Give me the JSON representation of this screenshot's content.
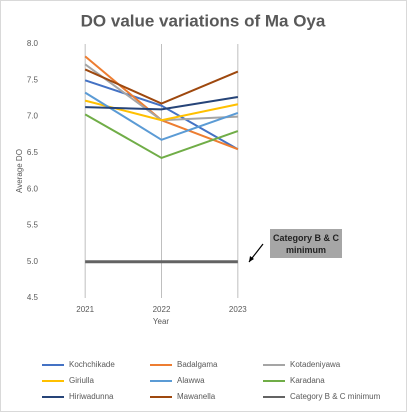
{
  "chart_data": {
    "type": "line",
    "title": "DO value variations of Ma Oya",
    "x_label": "Year",
    "y_label": "Average DO",
    "categories": [
      "2021",
      "2022",
      "2023"
    ],
    "ylim": [
      4.5,
      8.0
    ],
    "yticks": [
      4.5,
      {
        "value": 5.0,
        "label": "5.0"
      },
      5.5,
      {
        "value": 6.0,
        "label": "6.0"
      },
      6.5,
      {
        "value": 7.0,
        "label": "7.0"
      },
      7.5,
      {
        "value": 8.0,
        "label": "8.0"
      }
    ],
    "grid": "x",
    "legend": "bottom",
    "series": [
      {
        "name": "Kochchikade",
        "color": "#4472c4",
        "values": [
          7.5,
          7.15,
          6.55
        ]
      },
      {
        "name": "Badalgama",
        "color": "#ed7d31",
        "values": [
          7.83,
          6.95,
          6.55
        ]
      },
      {
        "name": "Kotadeniyawa",
        "color": "#a5a5a5",
        "values": [
          7.72,
          6.95,
          7.0
        ]
      },
      {
        "name": "Giriulla",
        "color": "#ffc000",
        "values": [
          7.22,
          6.95,
          7.17
        ]
      },
      {
        "name": "Alawwa",
        "color": "#5b9bd5",
        "values": [
          7.33,
          6.68,
          7.05
        ]
      },
      {
        "name": "Karadana",
        "color": "#70ad47",
        "values": [
          7.03,
          6.43,
          6.8
        ]
      },
      {
        "name": "Hiriwadunna",
        "color": "#264478",
        "values": [
          7.13,
          7.1,
          7.27
        ]
      },
      {
        "name": "Mawanella",
        "color": "#9e480e",
        "values": [
          7.65,
          7.18,
          7.62
        ]
      },
      {
        "name": "Category B & C minimum",
        "color": "#636363",
        "values": [
          5.0,
          5.0,
          5.0
        ]
      }
    ],
    "annotation": "Category B & C minimum"
  }
}
